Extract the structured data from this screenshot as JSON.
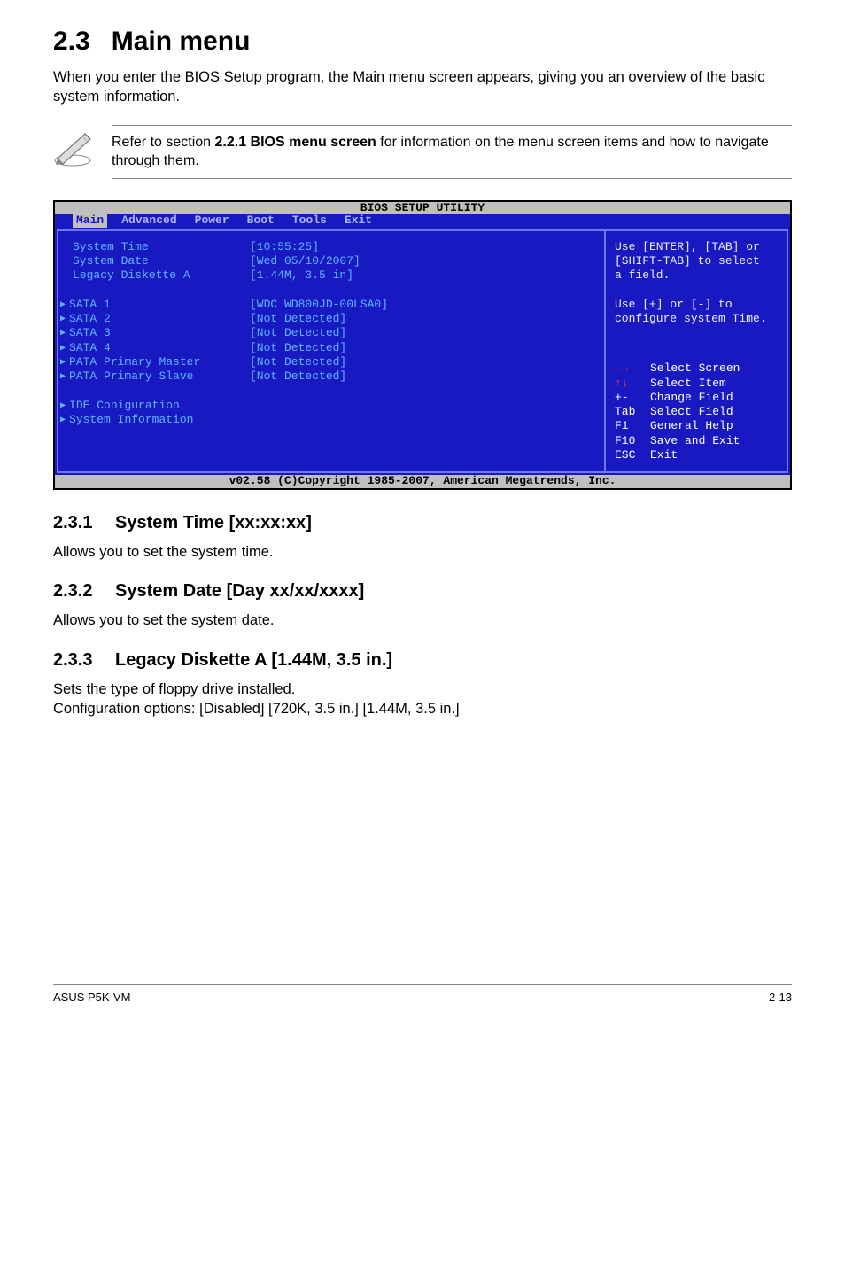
{
  "section": {
    "number": "2.3",
    "title": "Main menu",
    "intro": "When you enter the BIOS Setup program, the Main menu screen appears, giving you an overview of the basic system information."
  },
  "note": {
    "prefix": "Refer to section ",
    "bold": "2.2.1  BIOS menu screen",
    "suffix": " for information on the menu screen items and how to navigate through them."
  },
  "bios": {
    "title": "BIOS SETUP UTILITY",
    "menu": [
      "Main",
      "Advanced",
      "Power",
      "Boot",
      "Tools",
      "Exit"
    ],
    "active_menu_index": 0,
    "left": [
      {
        "key": "System Time",
        "val": "[10:55:25]",
        "arrow": false
      },
      {
        "key": "System Date",
        "val": "[Wed 05/10/2007]",
        "arrow": false
      },
      {
        "key": "Legacy Diskette A",
        "val": "[1.44M, 3.5 in]",
        "arrow": false
      },
      {
        "blank": true
      },
      {
        "key": "SATA 1",
        "val": "[WDC WD800JD-00LSA0]",
        "arrow": true
      },
      {
        "key": "SATA 2",
        "val": "[Not Detected]",
        "arrow": true
      },
      {
        "key": "SATA 3",
        "val": "[Not Detected]",
        "arrow": true
      },
      {
        "key": "SATA 4",
        "val": "[Not Detected]",
        "arrow": true
      },
      {
        "key": "PATA Primary Master",
        "val": "[Not Detected]",
        "arrow": true
      },
      {
        "key": "PATA Primary Slave",
        "val": "[Not Detected]",
        "arrow": true
      },
      {
        "blank": true
      },
      {
        "key": "IDE Coniguration",
        "val": "",
        "arrow": true
      },
      {
        "key": "System Information",
        "val": "",
        "arrow": true
      }
    ],
    "help_top": [
      "Use [ENTER], [TAB] or",
      "[SHIFT-TAB] to select",
      "a field.",
      "",
      "Use [+] or [-] to",
      "configure system Time."
    ],
    "help_keys": [
      {
        "k": "←→",
        "t": "Select Screen",
        "arrows": true
      },
      {
        "k": "↑↓",
        "t": "Select Item",
        "arrows": true
      },
      {
        "k": "+-",
        "t": "Change Field"
      },
      {
        "k": "Tab",
        "t": "Select Field"
      },
      {
        "k": "F1",
        "t": "General Help"
      },
      {
        "k": "F10",
        "t": "Save and Exit"
      },
      {
        "k": "ESC",
        "t": "Exit"
      }
    ],
    "copyright": "v02.58 (C)Copyright 1985-2007, American Megatrends, Inc."
  },
  "subs": [
    {
      "num": "2.3.1",
      "title": "System Time [xx:xx:xx]",
      "body": "Allows you to set the system time."
    },
    {
      "num": "2.3.2",
      "title": "System Date [Day xx/xx/xxxx]",
      "body": "Allows you to set the system date."
    },
    {
      "num": "2.3.3",
      "title": "Legacy Diskette A [1.44M, 3.5 in.]",
      "body": "Sets the type of floppy drive installed.\nConfiguration options: [Disabled] [720K, 3.5 in.] [1.44M, 3.5 in.]"
    }
  ],
  "footer": {
    "left": "ASUS P5K-VM",
    "right": "2-13"
  },
  "colors": {
    "bios_bg": "#1919c2",
    "bios_border": "#000000",
    "bios_inner_border": "#6a79ff",
    "bios_text_cyan": "#5eb6ff",
    "bios_text_white": "#eeeeee",
    "bios_bar_bg": "#bfbfbf",
    "arrow_red": "#ff3030"
  }
}
